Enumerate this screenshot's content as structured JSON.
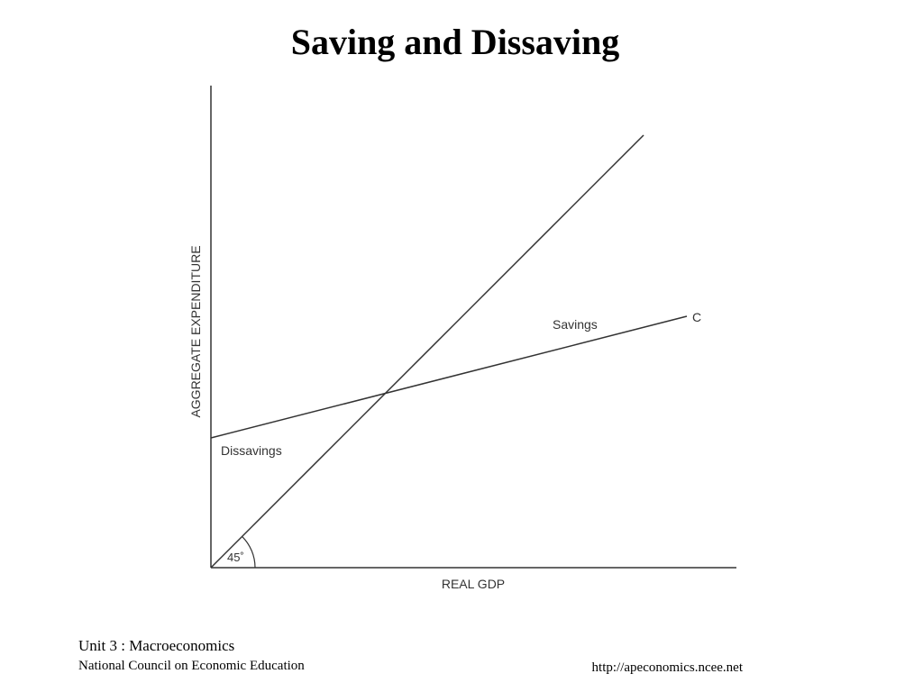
{
  "slide": {
    "title": "Saving and Dissaving",
    "footer": {
      "unit": "Unit 3 : Macroeconomics",
      "organization": "National Council on Economic Education",
      "url": "http://apeconomics.ncee.net"
    }
  },
  "diagram": {
    "y_axis_label": "AGGREGATE EXPENDITURE",
    "x_axis_label": "REAL GDP",
    "consumption_label": "C",
    "savings_label": "Savings",
    "dissavings_label": "Dissavings",
    "angle_label": "45˚",
    "colors": {
      "lines": "#333333",
      "text": "#333333"
    }
  }
}
